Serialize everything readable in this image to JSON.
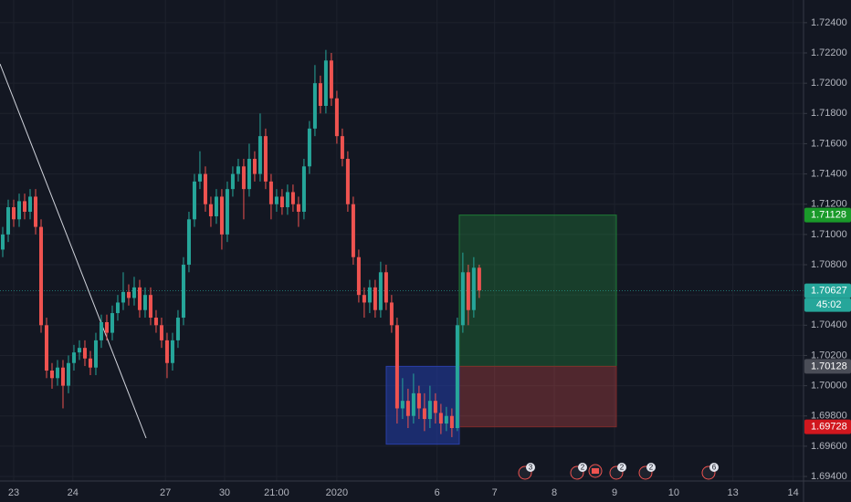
{
  "chart_data": {
    "type": "candlestick",
    "up_color": "#26a69a",
    "down_color": "#ef5350",
    "open": [
      1.709,
      1.71,
      1.7118,
      1.711,
      1.7122,
      1.7115,
      1.7125,
      1.7105,
      1.704,
      1.701,
      1.7005,
      1.7012,
      1.7,
      1.7015,
      1.7022,
      1.7025,
      1.7018,
      1.7012,
      1.703,
      1.7042,
      1.7035,
      1.7048,
      1.7055,
      1.7062,
      1.7058,
      1.7065,
      1.705,
      1.706,
      1.7045,
      1.704,
      1.703,
      1.7015,
      1.703,
      1.7045,
      1.708,
      1.711,
      1.7135,
      1.714,
      1.712,
      1.7112,
      1.7125,
      1.71,
      1.713,
      1.714,
      1.7145,
      1.713,
      1.715,
      1.714,
      1.7165,
      1.7135,
      1.712,
      1.7125,
      1.7118,
      1.7128,
      1.712,
      1.7115,
      1.7145,
      1.717,
      1.72,
      1.7185,
      1.7215,
      1.719,
      1.7165,
      1.715,
      1.712,
      1.7085,
      1.706,
      1.7055,
      1.7065,
      1.705,
      1.7075,
      1.7055,
      1.704,
      1.6985,
      1.699,
      1.698,
      1.6995,
      1.6985,
      1.6978,
      1.699,
      1.6982,
      1.6975,
      1.698,
      1.6972,
      1.704,
      1.7075,
      1.705,
      1.7078
    ],
    "high": [
      1.7105,
      1.7123,
      1.7123,
      1.7127,
      1.7127,
      1.713,
      1.713,
      1.711,
      1.7045,
      1.7015,
      1.7017,
      1.7017,
      1.702,
      1.7027,
      1.703,
      1.703,
      1.7023,
      1.7035,
      1.7047,
      1.7047,
      1.7053,
      1.706,
      1.7075,
      1.7067,
      1.7072,
      1.707,
      1.7065,
      1.7065,
      1.705,
      1.7045,
      1.7035,
      1.7035,
      1.705,
      1.7085,
      1.7115,
      1.714,
      1.7155,
      1.7145,
      1.7125,
      1.713,
      1.713,
      1.7135,
      1.7145,
      1.715,
      1.715,
      1.716,
      1.7155,
      1.718,
      1.717,
      1.714,
      1.713,
      1.713,
      1.7133,
      1.7133,
      1.7125,
      1.715,
      1.7175,
      1.7212,
      1.7205,
      1.7222,
      1.722,
      1.7195,
      1.717,
      1.7155,
      1.7125,
      1.709,
      1.7065,
      1.707,
      1.707,
      1.7082,
      1.708,
      1.706,
      1.7045,
      1.7005,
      1.6998,
      1.7008,
      1.7,
      1.6995,
      1.7,
      1.6995,
      1.6988,
      1.6986,
      1.6985,
      1.7045,
      1.7088,
      1.708,
      1.7085,
      1.708
    ],
    "low": [
      1.7085,
      1.7095,
      1.7105,
      1.7105,
      1.711,
      1.711,
      1.71,
      1.7035,
      1.7005,
      1.6998,
      1.7,
      1.6985,
      1.6995,
      1.701,
      1.7017,
      1.7013,
      1.7007,
      1.7007,
      1.7025,
      1.703,
      1.703,
      1.7043,
      1.705,
      1.7053,
      1.7053,
      1.7045,
      1.7045,
      1.704,
      1.7035,
      1.7025,
      1.7005,
      1.701,
      1.7025,
      1.704,
      1.7075,
      1.7105,
      1.713,
      1.7115,
      1.7105,
      1.7107,
      1.709,
      1.7095,
      1.7125,
      1.7135,
      1.711,
      1.7125,
      1.7135,
      1.7135,
      1.713,
      1.711,
      1.7115,
      1.7113,
      1.7113,
      1.7115,
      1.7105,
      1.711,
      1.714,
      1.7165,
      1.718,
      1.718,
      1.7185,
      1.716,
      1.7145,
      1.7115,
      1.708,
      1.7055,
      1.7045,
      1.7048,
      1.7045,
      1.7045,
      1.705,
      1.7035,
      1.6975,
      1.6978,
      1.6972,
      1.6975,
      1.6978,
      1.697,
      1.6972,
      1.6975,
      1.6968,
      1.697,
      1.6966,
      1.697,
      1.7035,
      1.704,
      1.7045,
      1.7058
    ],
    "close": [
      1.71,
      1.7118,
      1.711,
      1.7122,
      1.7115,
      1.7125,
      1.7105,
      1.704,
      1.701,
      1.7005,
      1.7012,
      1.7,
      1.7015,
      1.7022,
      1.7025,
      1.7018,
      1.7012,
      1.703,
      1.7042,
      1.7035,
      1.7048,
      1.7055,
      1.7062,
      1.7058,
      1.7065,
      1.705,
      1.706,
      1.7045,
      1.704,
      1.703,
      1.7015,
      1.703,
      1.7045,
      1.708,
      1.711,
      1.7135,
      1.714,
      1.712,
      1.7112,
      1.7125,
      1.71,
      1.713,
      1.714,
      1.7145,
      1.713,
      1.715,
      1.714,
      1.7165,
      1.7135,
      1.712,
      1.7125,
      1.7118,
      1.7128,
      1.712,
      1.7115,
      1.7145,
      1.717,
      1.72,
      1.7185,
      1.7215,
      1.719,
      1.7165,
      1.715,
      1.712,
      1.7085,
      1.706,
      1.7055,
      1.7065,
      1.705,
      1.7075,
      1.7055,
      1.704,
      1.6985,
      1.699,
      1.698,
      1.6995,
      1.6985,
      1.6978,
      1.699,
      1.6982,
      1.6975,
      1.698,
      1.6972,
      1.704,
      1.7075,
      1.705,
      1.7078,
      1.7063
    ],
    "xlim": [
      -0.5,
      146.2
    ],
    "xticks": [
      {
        "value": 2.0,
        "label": "23"
      },
      {
        "value": 12.8,
        "label": "24"
      },
      {
        "value": 29.7,
        "label": "27"
      },
      {
        "value": 40.5,
        "label": "30"
      },
      {
        "value": 50,
        "label": "21:00"
      },
      {
        "value": 61,
        "label": "2020"
      },
      {
        "value": 79.3,
        "label": "6"
      },
      {
        "value": 89.8,
        "label": "7"
      },
      {
        "value": 100.7,
        "label": "8"
      },
      {
        "value": 111.7,
        "label": "9"
      },
      {
        "value": 122.5,
        "label": "10"
      },
      {
        "value": 133.3,
        "label": "13"
      },
      {
        "value": 144.3,
        "label": "14"
      }
    ],
    "ylim": [
      1.6937,
      1.7255
    ],
    "yticks": [
      {
        "value": 1.724,
        "label": "1.72400"
      },
      {
        "value": 1.722,
        "label": "1.72200"
      },
      {
        "value": 1.72,
        "label": "1.72000"
      },
      {
        "value": 1.718,
        "label": "1.71800"
      },
      {
        "value": 1.716,
        "label": "1.71600"
      },
      {
        "value": 1.714,
        "label": "1.71400"
      },
      {
        "value": 1.712,
        "label": "1.71200"
      },
      {
        "value": 1.71,
        "label": "1.71000"
      },
      {
        "value": 1.708,
        "label": "1.70800"
      },
      {
        "value": 1.706,
        "label": "1.70600"
      },
      {
        "value": 1.704,
        "label": "1.70400"
      },
      {
        "value": 1.702,
        "label": "1.70200"
      },
      {
        "value": 1.7,
        "label": "1.70000"
      },
      {
        "value": 1.698,
        "label": "1.69800"
      },
      {
        "value": 1.696,
        "label": "1.69600"
      },
      {
        "value": 1.694,
        "label": "1.69400"
      }
    ],
    "grid": true,
    "position": {
      "target": 1.71128,
      "entry": 1.70128,
      "stop": 1.69728
    },
    "last_price": 1.70627,
    "countdown": "45:02",
    "events": [
      3,
      2,
      2,
      2,
      6
    ]
  }
}
